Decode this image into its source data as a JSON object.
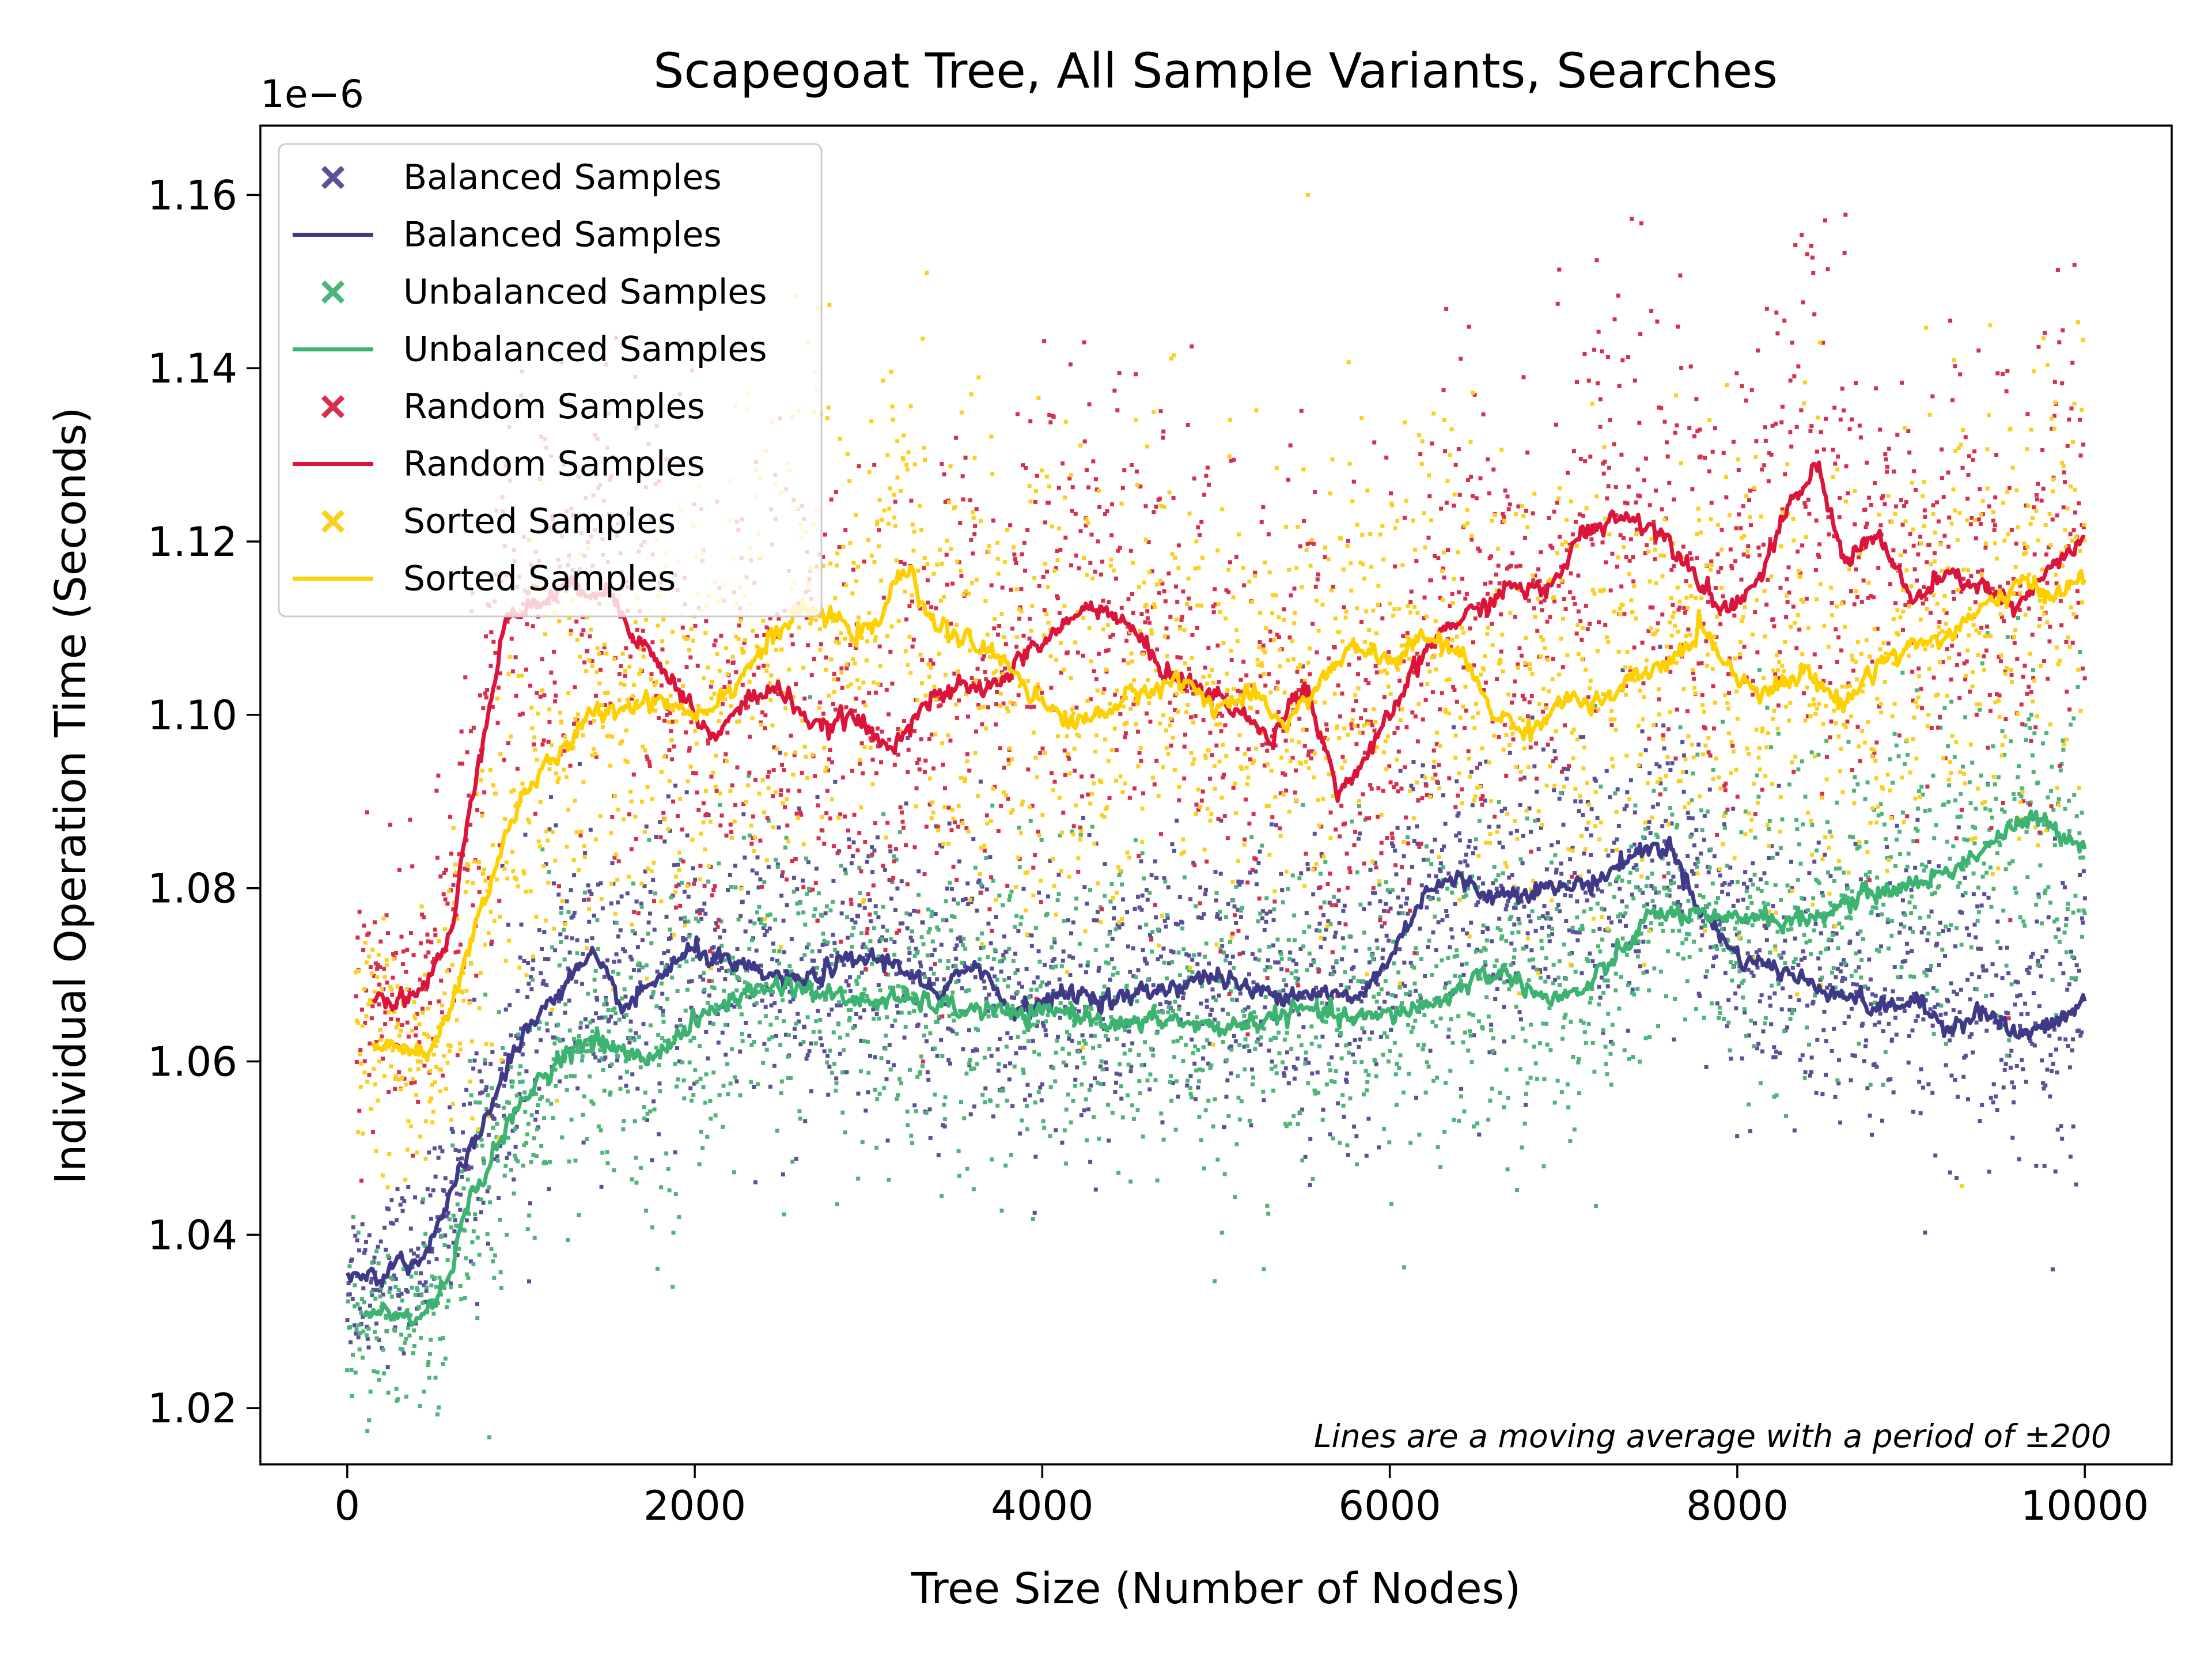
{
  "chart_data": {
    "type": "scatter",
    "title": "Scapegoat Tree, All Sample Variants, Searches",
    "xlabel": "Tree Size (Number of Nodes)",
    "ylabel": "Individual Operation Time (Seconds)",
    "y_offset_label": "1e−6",
    "xlim": [
      -500,
      10500
    ],
    "ylim": [
      1.0135,
      1.168
    ],
    "x_ticks": [
      0,
      2000,
      4000,
      6000,
      8000,
      10000
    ],
    "y_ticks": [
      1.02,
      1.04,
      1.06,
      1.08,
      1.1,
      1.12,
      1.14,
      1.16
    ],
    "y_tick_labels": [
      "1.02",
      "1.04",
      "1.06",
      "1.08",
      "1.10",
      "1.12",
      "1.14",
      "1.16"
    ],
    "grid": false,
    "legend_position": "top-left",
    "annotation": "Lines are a moving average with a period of ±200",
    "series": [
      {
        "name": "Balanced Samples",
        "color": "#3f3a88",
        "scatter_color": "#5a5198",
        "moving_average": [
          [
            0,
            1.035
          ],
          [
            200,
            1.0355
          ],
          [
            300,
            1.037
          ],
          [
            400,
            1.0365
          ],
          [
            600,
            1.045
          ],
          [
            800,
            1.054
          ],
          [
            1000,
            1.063
          ],
          [
            1200,
            1.068
          ],
          [
            1400,
            1.072
          ],
          [
            1600,
            1.066
          ],
          [
            1800,
            1.07
          ],
          [
            2000,
            1.073
          ],
          [
            2200,
            1.071
          ],
          [
            2400,
            1.07
          ],
          [
            2600,
            1.069
          ],
          [
            2800,
            1.071
          ],
          [
            3000,
            1.072
          ],
          [
            3200,
            1.071
          ],
          [
            3400,
            1.067
          ],
          [
            3600,
            1.072
          ],
          [
            3800,
            1.066
          ],
          [
            4000,
            1.067
          ],
          [
            4200,
            1.068
          ],
          [
            4400,
            1.067
          ],
          [
            4600,
            1.068
          ],
          [
            4800,
            1.069
          ],
          [
            5000,
            1.07
          ],
          [
            5200,
            1.068
          ],
          [
            5400,
            1.068
          ],
          [
            5600,
            1.068
          ],
          [
            5800,
            1.067
          ],
          [
            6000,
            1.072
          ],
          [
            6200,
            1.08
          ],
          [
            6400,
            1.081
          ],
          [
            6600,
            1.079
          ],
          [
            6800,
            1.08
          ],
          [
            7000,
            1.08
          ],
          [
            7200,
            1.081
          ],
          [
            7400,
            1.084
          ],
          [
            7600,
            1.085
          ],
          [
            7800,
            1.077
          ],
          [
            8000,
            1.072
          ],
          [
            8200,
            1.071
          ],
          [
            8400,
            1.069
          ],
          [
            8600,
            1.068
          ],
          [
            8800,
            1.066
          ],
          [
            9000,
            1.067
          ],
          [
            9200,
            1.064
          ],
          [
            9400,
            1.066
          ],
          [
            9600,
            1.063
          ],
          [
            9800,
            1.064
          ],
          [
            10000,
            1.067
          ]
        ],
        "scatter_sigma": 0.0085
      },
      {
        "name": "Unbalanced Samples",
        "color": "#3cb371",
        "scatter_color": "#4fb47a",
        "moving_average": [
          [
            100,
            1.031
          ],
          [
            250,
            1.031
          ],
          [
            400,
            1.03
          ],
          [
            550,
            1.034
          ],
          [
            700,
            1.044
          ],
          [
            900,
            1.052
          ],
          [
            1100,
            1.058
          ],
          [
            1300,
            1.062
          ],
          [
            1500,
            1.062
          ],
          [
            1700,
            1.06
          ],
          [
            1900,
            1.063
          ],
          [
            2100,
            1.066
          ],
          [
            2300,
            1.068
          ],
          [
            2500,
            1.069
          ],
          [
            2700,
            1.068
          ],
          [
            2900,
            1.067
          ],
          [
            3100,
            1.067
          ],
          [
            3300,
            1.067
          ],
          [
            3500,
            1.066
          ],
          [
            3700,
            1.066
          ],
          [
            3900,
            1.065
          ],
          [
            4100,
            1.066
          ],
          [
            4300,
            1.065
          ],
          [
            4500,
            1.064
          ],
          [
            4700,
            1.065
          ],
          [
            4900,
            1.064
          ],
          [
            5100,
            1.064
          ],
          [
            5300,
            1.065
          ],
          [
            5500,
            1.066
          ],
          [
            5700,
            1.065
          ],
          [
            5900,
            1.065
          ],
          [
            6100,
            1.066
          ],
          [
            6300,
            1.067
          ],
          [
            6500,
            1.07
          ],
          [
            6700,
            1.07
          ],
          [
            6900,
            1.067
          ],
          [
            7100,
            1.068
          ],
          [
            7300,
            1.072
          ],
          [
            7500,
            1.077
          ],
          [
            7700,
            1.077
          ],
          [
            7900,
            1.076
          ],
          [
            8100,
            1.077
          ],
          [
            8300,
            1.076
          ],
          [
            8500,
            1.077
          ],
          [
            8700,
            1.079
          ],
          [
            8900,
            1.08
          ],
          [
            9100,
            1.081
          ],
          [
            9300,
            1.083
          ],
          [
            9500,
            1.086
          ],
          [
            9700,
            1.088
          ],
          [
            10000,
            1.085
          ]
        ],
        "scatter_sigma": 0.0095
      },
      {
        "name": "Random Samples",
        "color": "#dc143c",
        "scatter_color": "#d6304e",
        "moving_average": [
          [
            150,
            1.0675
          ],
          [
            300,
            1.067
          ],
          [
            450,
            1.069
          ],
          [
            600,
            1.075
          ],
          [
            700,
            1.09
          ],
          [
            800,
            1.1
          ],
          [
            900,
            1.111
          ],
          [
            1100,
            1.113
          ],
          [
            1300,
            1.115
          ],
          [
            1500,
            1.114
          ],
          [
            1700,
            1.108
          ],
          [
            1900,
            1.103
          ],
          [
            2100,
            1.097
          ],
          [
            2300,
            1.102
          ],
          [
            2500,
            1.103
          ],
          [
            2700,
            1.098
          ],
          [
            2900,
            1.1
          ],
          [
            3100,
            1.096
          ],
          [
            3300,
            1.101
          ],
          [
            3500,
            1.103
          ],
          [
            3700,
            1.103
          ],
          [
            3900,
            1.107
          ],
          [
            4100,
            1.11
          ],
          [
            4300,
            1.113
          ],
          [
            4500,
            1.11
          ],
          [
            4700,
            1.105
          ],
          [
            4900,
            1.103
          ],
          [
            5100,
            1.101
          ],
          [
            5300,
            1.097
          ],
          [
            5500,
            1.104
          ],
          [
            5700,
            1.091
          ],
          [
            5900,
            1.096
          ],
          [
            6100,
            1.104
          ],
          [
            6300,
            1.11
          ],
          [
            6500,
            1.112
          ],
          [
            6700,
            1.115
          ],
          [
            6900,
            1.114
          ],
          [
            7100,
            1.121
          ],
          [
            7300,
            1.123
          ],
          [
            7500,
            1.122
          ],
          [
            7700,
            1.118
          ],
          [
            7900,
            1.112
          ],
          [
            8100,
            1.115
          ],
          [
            8300,
            1.124
          ],
          [
            8450,
            1.129
          ],
          [
            8600,
            1.118
          ],
          [
            8800,
            1.121
          ],
          [
            9000,
            1.113
          ],
          [
            9200,
            1.116
          ],
          [
            9400,
            1.115
          ],
          [
            9600,
            1.112
          ],
          [
            9800,
            1.117
          ],
          [
            10000,
            1.12
          ]
        ],
        "scatter_sigma": 0.014
      },
      {
        "name": "Sorted Samples",
        "color": "#ffd000",
        "scatter_color": "#fccf1e",
        "moving_average": [
          [
            150,
            1.0615
          ],
          [
            300,
            1.062
          ],
          [
            450,
            1.06
          ],
          [
            600,
            1.067
          ],
          [
            800,
            1.08
          ],
          [
            1000,
            1.091
          ],
          [
            1200,
            1.095
          ],
          [
            1400,
            1.1
          ],
          [
            1600,
            1.101
          ],
          [
            1800,
            1.102
          ],
          [
            2000,
            1.1
          ],
          [
            2200,
            1.103
          ],
          [
            2400,
            1.108
          ],
          [
            2600,
            1.112
          ],
          [
            2800,
            1.111
          ],
          [
            3000,
            1.109
          ],
          [
            3200,
            1.117
          ],
          [
            3400,
            1.11
          ],
          [
            3600,
            1.108
          ],
          [
            3800,
            1.106
          ],
          [
            4000,
            1.101
          ],
          [
            4200,
            1.099
          ],
          [
            4400,
            1.101
          ],
          [
            4600,
            1.103
          ],
          [
            4800,
            1.104
          ],
          [
            5000,
            1.101
          ],
          [
            5200,
            1.102
          ],
          [
            5400,
            1.099
          ],
          [
            5600,
            1.104
          ],
          [
            5800,
            1.108
          ],
          [
            6000,
            1.106
          ],
          [
            6200,
            1.109
          ],
          [
            6400,
            1.107
          ],
          [
            6600,
            1.1
          ],
          [
            6800,
            1.098
          ],
          [
            7000,
            1.102
          ],
          [
            7200,
            1.101
          ],
          [
            7400,
            1.104
          ],
          [
            7600,
            1.106
          ],
          [
            7800,
            1.11
          ],
          [
            8000,
            1.104
          ],
          [
            8200,
            1.103
          ],
          [
            8400,
            1.105
          ],
          [
            8600,
            1.101
          ],
          [
            8800,
            1.106
          ],
          [
            9000,
            1.108
          ],
          [
            9200,
            1.109
          ],
          [
            9400,
            1.112
          ],
          [
            9600,
            1.115
          ],
          [
            9800,
            1.114
          ],
          [
            10000,
            1.116
          ]
        ],
        "scatter_sigma": 0.0135
      }
    ]
  }
}
